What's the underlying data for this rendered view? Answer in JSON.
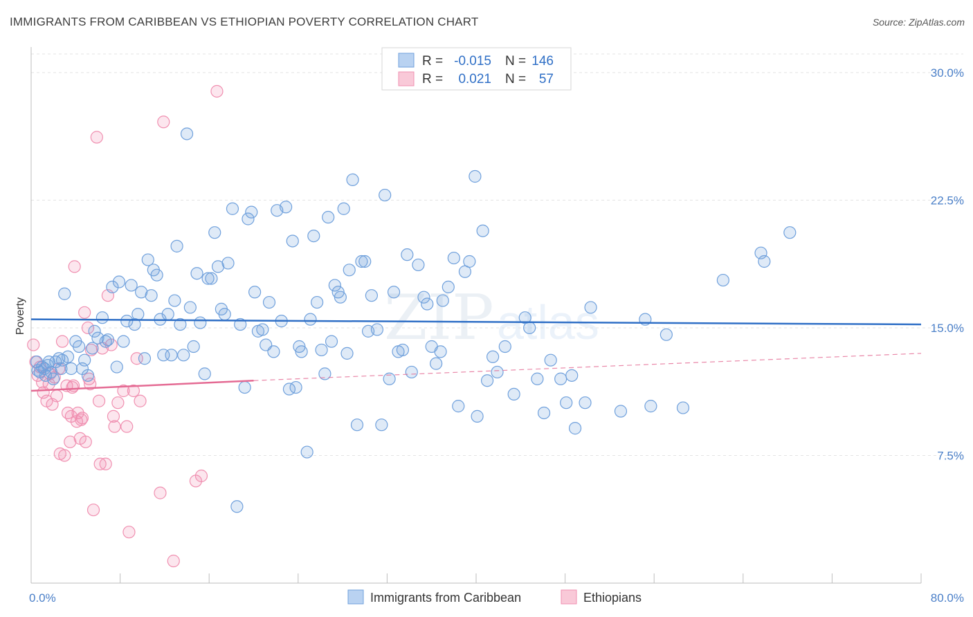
{
  "title": "IMMIGRANTS FROM CARIBBEAN VS ETHIOPIAN POVERTY CORRELATION CHART",
  "source": "Source: ZipAtlas.com",
  "watermark": {
    "zip": "ZIP",
    "atlas": "atlas"
  },
  "legend_box": {
    "rows": [
      {
        "r_label": "R =",
        "r_value": "-0.015",
        "n_label": "N =",
        "n_value": "146"
      },
      {
        "r_label": "R =",
        "r_value": "0.021",
        "n_label": "N =",
        "n_value": "57"
      }
    ]
  },
  "chart_data": {
    "type": "scatter",
    "title": "IMMIGRANTS FROM CARIBBEAN VS ETHIOPIAN POVERTY CORRELATION CHART",
    "xlabel": "",
    "ylabel": "Poverty",
    "xlim": [
      0,
      80
    ],
    "ylim": [
      0,
      31.5
    ],
    "x_tick_labels": [
      "0.0%",
      "80.0%"
    ],
    "y_ticks": [
      7.5,
      15.0,
      22.5,
      30.0
    ],
    "y_tick_labels": [
      "7.5%",
      "15.0%",
      "22.5%",
      "30.0%"
    ],
    "grid": "horizontal dashed",
    "legend_placement": "bottom-center",
    "colors": {
      "caribbean": "#6fa0dc",
      "caribbean_line": "#2f6fc6",
      "ethiopian": "#f08fb0",
      "ethiopian_line": "#e46a93",
      "axis_text": "#4a7fc8"
    },
    "series": [
      {
        "name": "Immigrants from Caribbean",
        "r": -0.015,
        "n": 146,
        "trend": {
          "x": [
            0,
            80
          ],
          "y": [
            15.5,
            15.2
          ]
        },
        "points": [
          [
            0.5,
            13.0
          ],
          [
            0.6,
            12.5
          ],
          [
            0.8,
            12.4
          ],
          [
            1.0,
            12.7
          ],
          [
            1.2,
            12.6
          ],
          [
            1.3,
            12.2
          ],
          [
            1.5,
            12.8
          ],
          [
            1.6,
            13.0
          ],
          [
            1.8,
            12.4
          ],
          [
            2.0,
            12.0
          ],
          [
            2.2,
            13.0
          ],
          [
            2.5,
            13.2
          ],
          [
            2.7,
            12.6
          ],
          [
            2.8,
            13.1
          ],
          [
            3.0,
            17.0
          ],
          [
            3.3,
            13.3
          ],
          [
            3.6,
            12.6
          ],
          [
            4.0,
            14.2
          ],
          [
            4.3,
            13.9
          ],
          [
            4.6,
            12.6
          ],
          [
            4.8,
            13.1
          ],
          [
            5.1,
            12.2
          ],
          [
            5.5,
            13.8
          ],
          [
            5.7,
            14.8
          ],
          [
            6.0,
            14.4
          ],
          [
            6.4,
            15.6
          ],
          [
            6.7,
            14.2
          ],
          [
            6.9,
            14.3
          ],
          [
            7.3,
            17.4
          ],
          [
            7.7,
            12.7
          ],
          [
            7.9,
            17.7
          ],
          [
            8.3,
            14.2
          ],
          [
            8.6,
            15.4
          ],
          [
            9.0,
            17.5
          ],
          [
            9.3,
            15.2
          ],
          [
            9.6,
            15.8
          ],
          [
            9.9,
            17.1
          ],
          [
            10.2,
            13.2
          ],
          [
            10.5,
            19.0
          ],
          [
            10.8,
            16.9
          ],
          [
            11.0,
            18.4
          ],
          [
            11.3,
            18.1
          ],
          [
            11.6,
            15.5
          ],
          [
            11.9,
            13.4
          ],
          [
            12.3,
            15.8
          ],
          [
            12.6,
            13.4
          ],
          [
            12.9,
            16.6
          ],
          [
            13.1,
            19.8
          ],
          [
            13.4,
            15.2
          ],
          [
            13.7,
            13.4
          ],
          [
            14.0,
            26.4
          ],
          [
            14.3,
            16.2
          ],
          [
            14.6,
            13.9
          ],
          [
            14.9,
            18.2
          ],
          [
            15.2,
            15.3
          ],
          [
            15.6,
            12.3
          ],
          [
            15.9,
            17.9
          ],
          [
            16.2,
            17.9
          ],
          [
            16.5,
            20.6
          ],
          [
            16.8,
            18.6
          ],
          [
            17.1,
            16.1
          ],
          [
            17.4,
            15.8
          ],
          [
            17.7,
            18.8
          ],
          [
            18.1,
            22.0
          ],
          [
            18.5,
            4.5
          ],
          [
            18.8,
            15.2
          ],
          [
            19.2,
            11.5
          ],
          [
            19.5,
            21.4
          ],
          [
            19.8,
            21.8
          ],
          [
            20.1,
            17.1
          ],
          [
            20.4,
            14.8
          ],
          [
            20.8,
            14.9
          ],
          [
            21.1,
            14.0
          ],
          [
            21.4,
            16.5
          ],
          [
            21.8,
            13.6
          ],
          [
            22.1,
            21.9
          ],
          [
            22.5,
            15.4
          ],
          [
            22.9,
            22.1
          ],
          [
            23.2,
            11.4
          ],
          [
            23.5,
            20.1
          ],
          [
            23.8,
            11.5
          ],
          [
            24.1,
            13.9
          ],
          [
            24.3,
            13.6
          ],
          [
            24.8,
            7.7
          ],
          [
            25.1,
            15.5
          ],
          [
            25.4,
            20.4
          ],
          [
            25.7,
            16.5
          ],
          [
            26.1,
            13.7
          ],
          [
            26.4,
            12.3
          ],
          [
            26.7,
            21.5
          ],
          [
            27.0,
            14.2
          ],
          [
            27.3,
            17.5
          ],
          [
            27.6,
            17.1
          ],
          [
            27.8,
            16.8
          ],
          [
            28.1,
            22.0
          ],
          [
            28.4,
            13.5
          ],
          [
            28.6,
            18.4
          ],
          [
            28.9,
            23.7
          ],
          [
            29.3,
            9.3
          ],
          [
            29.7,
            18.9
          ],
          [
            30.0,
            18.9
          ],
          [
            30.3,
            14.8
          ],
          [
            30.6,
            16.9
          ],
          [
            31.1,
            14.9
          ],
          [
            31.5,
            9.3
          ],
          [
            31.8,
            22.8
          ],
          [
            32.2,
            12.0
          ],
          [
            32.6,
            17.1
          ],
          [
            33.0,
            13.6
          ],
          [
            33.4,
            13.7
          ],
          [
            33.8,
            19.3
          ],
          [
            34.2,
            12.4
          ],
          [
            34.8,
            18.7
          ],
          [
            35.3,
            16.8
          ],
          [
            35.6,
            16.4
          ],
          [
            36.0,
            13.9
          ],
          [
            36.4,
            12.9
          ],
          [
            36.8,
            13.6
          ],
          [
            37.0,
            16.6
          ],
          [
            37.5,
            17.4
          ],
          [
            38.0,
            19.1
          ],
          [
            38.4,
            10.4
          ],
          [
            39.0,
            18.3
          ],
          [
            39.4,
            18.9
          ],
          [
            39.9,
            23.9
          ],
          [
            40.1,
            9.8
          ],
          [
            40.6,
            20.7
          ],
          [
            41.0,
            11.9
          ],
          [
            41.5,
            13.3
          ],
          [
            41.9,
            12.4
          ],
          [
            42.6,
            13.9
          ],
          [
            43.4,
            11.1
          ],
          [
            44.4,
            15.6
          ],
          [
            44.8,
            15.0
          ],
          [
            45.5,
            12.0
          ],
          [
            46.1,
            10.0
          ],
          [
            46.7,
            13.1
          ],
          [
            47.6,
            12.0
          ],
          [
            48.1,
            10.6
          ],
          [
            48.6,
            12.2
          ],
          [
            48.9,
            9.1
          ],
          [
            49.8,
            10.6
          ],
          [
            50.3,
            16.2
          ],
          [
            53.0,
            10.1
          ],
          [
            55.2,
            15.5
          ],
          [
            55.7,
            10.4
          ],
          [
            57.1,
            14.6
          ],
          [
            58.6,
            10.3
          ],
          [
            62.2,
            17.8
          ],
          [
            65.6,
            19.4
          ],
          [
            65.9,
            18.9
          ],
          [
            68.2,
            20.6
          ]
        ]
      },
      {
        "name": "Ethiopians",
        "r": 0.021,
        "n": 57,
        "trend_solid": {
          "x": [
            0,
            20
          ],
          "y": [
            11.3,
            11.9
          ]
        },
        "trend_dashed": {
          "x": [
            20,
            80
          ],
          "y": [
            11.9,
            13.5
          ]
        },
        "points": [
          [
            0.2,
            14.0
          ],
          [
            0.4,
            13.0
          ],
          [
            0.6,
            12.2
          ],
          [
            0.8,
            12.7
          ],
          [
            1.0,
            11.8
          ],
          [
            1.1,
            11.2
          ],
          [
            1.4,
            10.7
          ],
          [
            1.6,
            11.7
          ],
          [
            1.7,
            12.3
          ],
          [
            1.9,
            10.5
          ],
          [
            2.1,
            12.1
          ],
          [
            2.3,
            11.0
          ],
          [
            2.5,
            12.6
          ],
          [
            2.6,
            7.6
          ],
          [
            2.8,
            14.2
          ],
          [
            3.0,
            7.5
          ],
          [
            3.2,
            11.6
          ],
          [
            3.3,
            10.0
          ],
          [
            3.5,
            8.3
          ],
          [
            3.6,
            9.8
          ],
          [
            3.8,
            11.6
          ],
          [
            3.9,
            18.6
          ],
          [
            4.1,
            9.5
          ],
          [
            4.2,
            10.0
          ],
          [
            4.4,
            8.5
          ],
          [
            4.6,
            9.7
          ],
          [
            4.8,
            15.9
          ],
          [
            4.9,
            8.3
          ],
          [
            5.1,
            15.0
          ],
          [
            5.2,
            12.0
          ],
          [
            5.4,
            13.7
          ],
          [
            5.6,
            4.3
          ],
          [
            5.9,
            26.2
          ],
          [
            6.1,
            10.7
          ],
          [
            6.2,
            7.0
          ],
          [
            6.4,
            13.8
          ],
          [
            6.7,
            7.0
          ],
          [
            6.9,
            16.9
          ],
          [
            7.2,
            14.0
          ],
          [
            7.4,
            9.8
          ],
          [
            7.5,
            9.2
          ],
          [
            7.8,
            10.6
          ],
          [
            8.3,
            11.3
          ],
          [
            8.6,
            9.2
          ],
          [
            8.8,
            3.0
          ],
          [
            9.2,
            11.3
          ],
          [
            9.5,
            13.2
          ],
          [
            9.8,
            10.7
          ],
          [
            11.6,
            5.3
          ],
          [
            11.9,
            27.1
          ],
          [
            12.8,
            1.3
          ],
          [
            14.8,
            6.0
          ],
          [
            15.3,
            6.3
          ],
          [
            16.7,
            28.9
          ],
          [
            5.3,
            11.7
          ],
          [
            4.5,
            9.6
          ],
          [
            3.7,
            11.5
          ]
        ]
      }
    ]
  },
  "legend": {
    "items": [
      {
        "label": "Immigrants from Caribbean"
      },
      {
        "label": "Ethiopians"
      }
    ]
  }
}
